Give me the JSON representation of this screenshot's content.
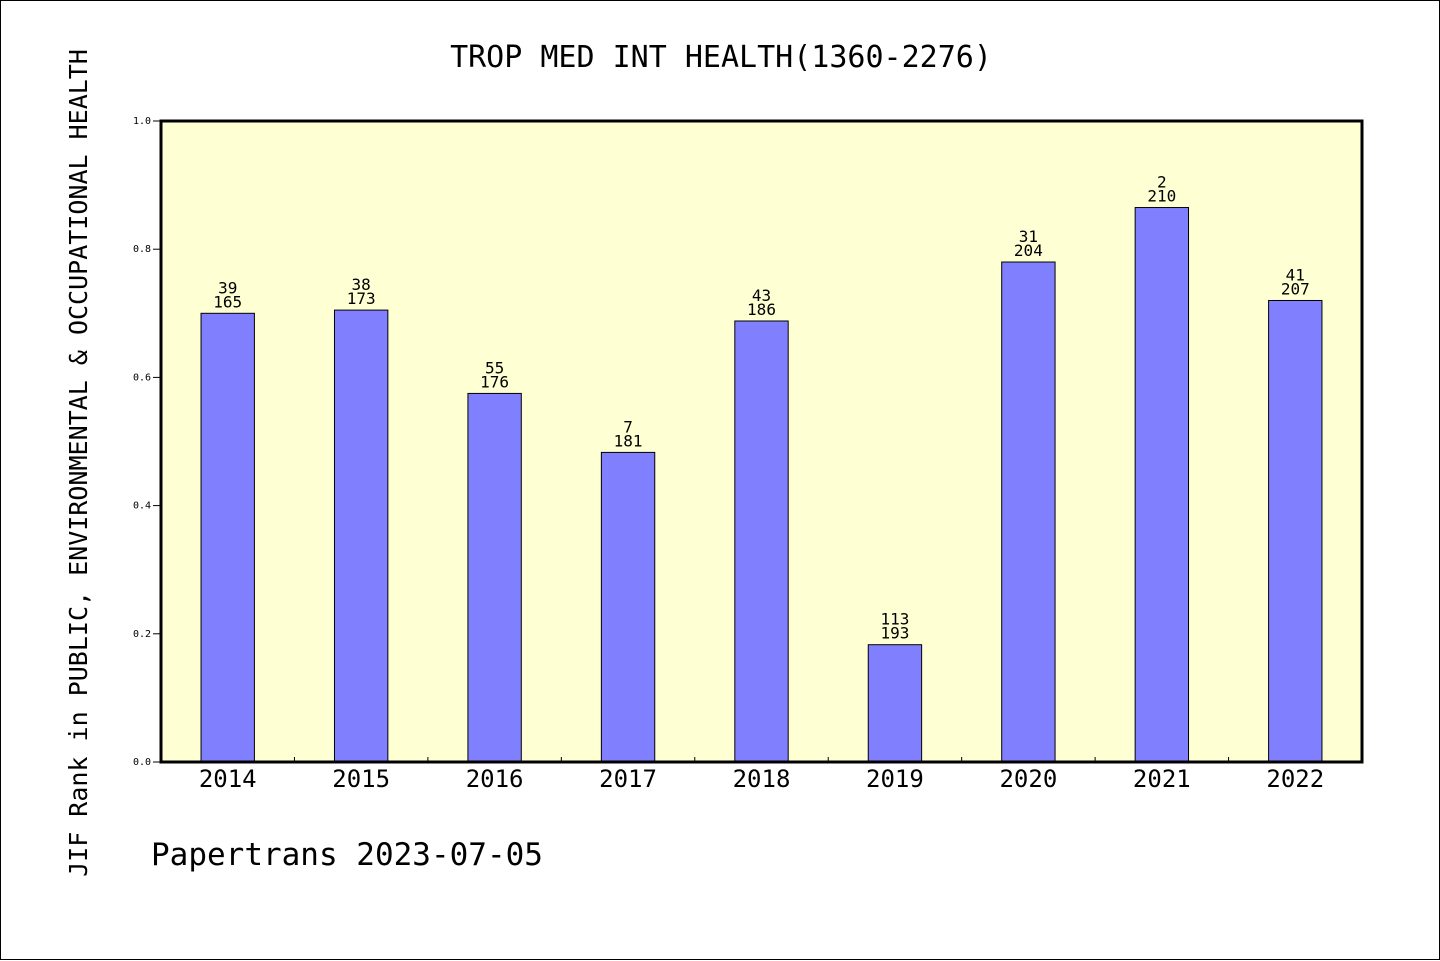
{
  "chart_data": {
    "type": "bar",
    "title": "TROP MED INT HEALTH(1360-2276)",
    "xlabel": "",
    "ylabel": "JIF Rank in PUBLIC, ENVIRONMENTAL & OCCUPATIONAL HEALTH",
    "categories": [
      "2014",
      "2015",
      "2016",
      "2017",
      "2018",
      "2019",
      "2020",
      "2021",
      "2022"
    ],
    "values": [
      0.7,
      0.705,
      0.575,
      0.483,
      0.688,
      0.183,
      0.78,
      0.865,
      0.72
    ],
    "labels_top": [
      "39",
      "38",
      "55",
      "7",
      "43",
      "113",
      "31",
      "2",
      "41"
    ],
    "labels_bottom": [
      "165",
      "173",
      "176",
      "181",
      "186",
      "193",
      "204",
      "210",
      "207"
    ],
    "ylim": [
      0,
      1.0
    ],
    "yticks": [
      "0.0",
      "0.2",
      "0.4",
      "0.6",
      "0.8",
      "1.0"
    ],
    "grid": false,
    "colors": {
      "bar": "#8080ff",
      "plot_background": "#ffffd4",
      "axis": "#000000"
    }
  },
  "footer": "Papertrans 2023-07-05"
}
